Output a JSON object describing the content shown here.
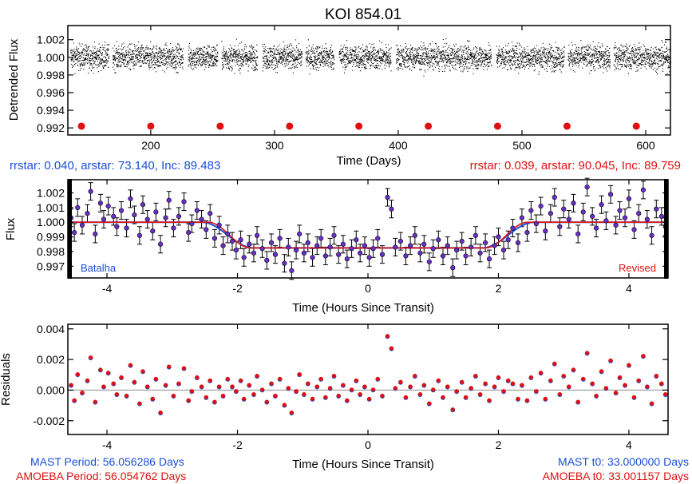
{
  "title": "KOI 854.01",
  "colors": {
    "blue": "#1a4ed8",
    "red": "#e01010",
    "purple": "#6a2fc9",
    "black": "#000000",
    "gray": "#9a9a9a"
  },
  "chart_data": [
    {
      "type": "scatter",
      "panel": "light-curve",
      "xlabel": "Time (Days)",
      "ylabel": "Detrended Flux",
      "xlim": [
        133,
        620
      ],
      "ylim": [
        0.9912,
        1.0036
      ],
      "xticks": [
        200,
        300,
        400,
        500,
        600
      ],
      "xtick_labels": [
        "200",
        "300",
        "400",
        "500",
        "600"
      ],
      "yticks": [
        0.992,
        0.994,
        0.996,
        0.998,
        1.0,
        1.002
      ],
      "ytick_labels": [
        "0.992",
        "0.994",
        "0.996",
        "0.998",
        "1.000",
        "1.002"
      ],
      "flux_center": 1.0,
      "flux_scatter_sd": 0.0007,
      "data_gaps": [
        [
          166,
          169
        ],
        [
          226,
          230
        ],
        [
          254,
          257
        ],
        [
          286,
          290
        ],
        [
          322,
          325
        ],
        [
          348,
          352
        ],
        [
          394,
          398
        ],
        [
          475,
          479
        ],
        [
          534,
          537
        ],
        [
          571,
          574
        ]
      ],
      "transit_markers": {
        "y": 0.9922,
        "x": [
          144.0,
          200.0,
          256.1,
          312.2,
          368.2,
          424.3,
          480.3,
          536.4,
          592.4
        ]
      },
      "params_left": "rrstar: 0.040, arstar: 73.140, Inc: 89.483",
      "params_right": "rrstar: 0.039, arstar: 90.045, Inc: 89.759"
    },
    {
      "type": "scatter",
      "panel": "folded-transit",
      "xlabel": "Time (Hours Since Transit)",
      "ylabel": "Flux",
      "xlim": [
        -4.6,
        4.6
      ],
      "ylim": [
        0.9962,
        1.0029
      ],
      "xticks": [
        -4,
        -2,
        0,
        2,
        4
      ],
      "xtick_labels": [
        "-4",
        "-2",
        "0",
        "2",
        "4"
      ],
      "yticks": [
        0.997,
        0.998,
        0.999,
        1.0,
        1.001,
        1.002
      ],
      "ytick_labels": [
        "0.997",
        "0.998",
        "0.999",
        "1.000",
        "1.001",
        "1.002"
      ],
      "error_bar": 0.0006,
      "model": {
        "baseline": 1.0,
        "depth_flux": 0.99825,
        "blue_contact_hours": {
          "t1": -2.55,
          "t2": -1.75,
          "t3": 1.75,
          "t4": 2.55
        },
        "red_contact_hours": {
          "t1": -2.45,
          "t2": -1.8,
          "t3": 1.8,
          "t4": 2.45
        }
      },
      "points": [
        [
          -4.55,
          1.0003
        ],
        [
          -4.5,
          0.9993
        ],
        [
          -4.45,
          1.001
        ],
        [
          -4.38,
          0.9998
        ],
        [
          -4.3,
          1.0006
        ],
        [
          -4.25,
          1.0021
        ],
        [
          -4.18,
          0.9992
        ],
        [
          -4.1,
          1.0013
        ],
        [
          -4.05,
          1.0002
        ],
        [
          -3.98,
          1.0011
        ],
        [
          -3.9,
          1.0004
        ],
        [
          -3.85,
          0.9997
        ],
        [
          -3.78,
          1.0008
        ],
        [
          -3.7,
          0.9996
        ],
        [
          -3.64,
          1.0016
        ],
        [
          -3.58,
          1.0005
        ],
        [
          -3.5,
          0.9991
        ],
        [
          -3.45,
          1.0012
        ],
        [
          -3.38,
          1.0002
        ],
        [
          -3.3,
          0.9994
        ],
        [
          -3.25,
          1.0007
        ],
        [
          -3.18,
          0.9985
        ],
        [
          -3.1,
          1.0003
        ],
        [
          -3.05,
          1.0015
        ],
        [
          -2.98,
          0.9996
        ],
        [
          -2.9,
          1.0004
        ],
        [
          -2.82,
          1.0014
        ],
        [
          -2.75,
          0.9993
        ],
        [
          -2.7,
          0.9999
        ],
        [
          -2.62,
          1.0008
        ],
        [
          -2.55,
          1.0002
        ],
        [
          -2.48,
          0.9995
        ],
        [
          -2.42,
          1.0006
        ],
        [
          -2.35,
          0.9989
        ],
        [
          -2.28,
          0.9998
        ],
        [
          -2.22,
          0.9984
        ],
        [
          -2.15,
          0.9992
        ],
        [
          -2.08,
          0.9987
        ],
        [
          -2.02,
          0.9981
        ],
        [
          -1.95,
          0.9988
        ],
        [
          -1.9,
          0.9976
        ],
        [
          -1.82,
          0.9985
        ],
        [
          -1.75,
          0.9979
        ],
        [
          -1.7,
          0.9991
        ],
        [
          -1.62,
          0.9982
        ],
        [
          -1.55,
          0.9974
        ],
        [
          -1.48,
          0.9986
        ],
        [
          -1.42,
          0.9978
        ],
        [
          -1.35,
          0.9989
        ],
        [
          -1.28,
          0.9972
        ],
        [
          -1.22,
          0.9983
        ],
        [
          -1.17,
          0.9967
        ],
        [
          -1.1,
          0.9981
        ],
        [
          -1.05,
          0.9992
        ],
        [
          -0.98,
          0.9979
        ],
        [
          -0.92,
          0.9986
        ],
        [
          -0.85,
          0.9976
        ],
        [
          -0.78,
          0.9984
        ],
        [
          -0.72,
          0.9989
        ],
        [
          -0.65,
          0.9977
        ],
        [
          -0.58,
          0.9983
        ],
        [
          -0.52,
          0.9991
        ],
        [
          -0.45,
          0.9978
        ],
        [
          -0.38,
          0.9985
        ],
        [
          -0.32,
          0.9975
        ],
        [
          -0.25,
          0.9982
        ],
        [
          -0.18,
          0.9988
        ],
        [
          -0.12,
          0.9979
        ],
        [
          -0.05,
          0.9984
        ],
        [
          0.02,
          0.9976
        ],
        [
          0.08,
          0.9982
        ],
        [
          0.15,
          0.9989
        ],
        [
          0.22,
          0.9978
        ],
        [
          0.3,
          1.0017
        ],
        [
          0.36,
          1.0009
        ],
        [
          0.42,
          0.9983
        ],
        [
          0.5,
          0.9987
        ],
        [
          0.58,
          0.9977
        ],
        [
          0.65,
          0.9984
        ],
        [
          0.72,
          0.9991
        ],
        [
          0.8,
          0.9979
        ],
        [
          0.86,
          0.9985
        ],
        [
          0.94,
          0.9973
        ],
        [
          1.0,
          0.9982
        ],
        [
          1.08,
          0.9988
        ],
        [
          1.15,
          0.9977
        ],
        [
          1.22,
          0.9984
        ],
        [
          1.3,
          0.9969
        ],
        [
          1.36,
          0.9981
        ],
        [
          1.44,
          0.9987
        ],
        [
          1.5,
          0.9977
        ],
        [
          1.58,
          0.9983
        ],
        [
          1.65,
          0.9991
        ],
        [
          1.72,
          0.9979
        ],
        [
          1.8,
          0.9986
        ],
        [
          1.86,
          0.9975
        ],
        [
          1.94,
          0.9984
        ],
        [
          2.0,
          0.999
        ],
        [
          2.08,
          0.9981
        ],
        [
          2.15,
          0.9988
        ],
        [
          2.22,
          0.9996
        ],
        [
          2.3,
          0.9986
        ],
        [
          2.36,
          1.0003
        ],
        [
          2.44,
          0.9993
        ],
        [
          2.5,
          1.0008
        ],
        [
          2.58,
          0.9999
        ],
        [
          2.65,
          1.0011
        ],
        [
          2.72,
          0.9994
        ],
        [
          2.8,
          1.0006
        ],
        [
          2.86,
          1.0017
        ],
        [
          2.94,
          0.9997
        ],
        [
          3.0,
          1.0009
        ],
        [
          3.08,
          1.0002
        ],
        [
          3.15,
          1.0013
        ],
        [
          3.22,
          0.9992
        ],
        [
          3.3,
          1.0007
        ],
        [
          3.36,
          1.0024
        ],
        [
          3.44,
          1.0004
        ],
        [
          3.5,
          0.9996
        ],
        [
          3.58,
          1.0012
        ],
        [
          3.65,
          1.0001
        ],
        [
          3.72,
          1.0019
        ],
        [
          3.8,
          0.9998
        ],
        [
          3.86,
          1.0008
        ],
        [
          3.94,
          1.0003
        ],
        [
          4.0,
          1.0016
        ],
        [
          4.08,
          0.9995
        ],
        [
          4.15,
          1.0006
        ],
        [
          4.22,
          1.0022
        ],
        [
          4.28,
          1.0002
        ],
        [
          4.35,
          0.9991
        ],
        [
          4.42,
          1.0009
        ],
        [
          4.5,
          1.0004
        ],
        [
          4.56,
          0.9997
        ]
      ],
      "label_left": "Batalha",
      "label_right": "Revised"
    },
    {
      "type": "scatter",
      "panel": "residuals",
      "xlabel": "Time (Hours Since Transit)",
      "ylabel": "Residuals",
      "xlim": [
        -4.6,
        4.6
      ],
      "ylim": [
        -0.0029,
        0.0043
      ],
      "xticks": [
        -4,
        -2,
        0,
        2,
        4
      ],
      "xtick_labels": [
        "-4",
        "-2",
        "0",
        "2",
        "4"
      ],
      "yticks": [
        -0.002,
        0.0,
        0.002,
        0.004
      ],
      "ytick_labels": [
        "-0.002",
        "0.000",
        "0.002",
        "0.004"
      ],
      "reference_line": 0.0,
      "points": [
        [
          -4.55,
          0.0003
        ],
        [
          -4.5,
          -0.0007
        ],
        [
          -4.45,
          0.001
        ],
        [
          -4.38,
          -0.0002
        ],
        [
          -4.3,
          0.0006
        ],
        [
          -4.25,
          0.0021
        ],
        [
          -4.18,
          -0.0008
        ],
        [
          -4.1,
          0.0013
        ],
        [
          -4.05,
          0.0002
        ],
        [
          -3.98,
          0.0011
        ],
        [
          -3.9,
          0.0004
        ],
        [
          -3.85,
          -0.0003
        ],
        [
          -3.78,
          0.0008
        ],
        [
          -3.7,
          -0.0004
        ],
        [
          -3.64,
          0.0016
        ],
        [
          -3.58,
          0.0005
        ],
        [
          -3.5,
          -0.0009
        ],
        [
          -3.45,
          0.0012
        ],
        [
          -3.38,
          0.0002
        ],
        [
          -3.3,
          -0.0006
        ],
        [
          -3.25,
          0.0007
        ],
        [
          -3.18,
          -0.0015
        ],
        [
          -3.1,
          0.0003
        ],
        [
          -3.05,
          0.0015
        ],
        [
          -2.98,
          -0.0004
        ],
        [
          -2.9,
          0.0004
        ],
        [
          -2.82,
          0.0014
        ],
        [
          -2.75,
          -0.0007
        ],
        [
          -2.7,
          -0.0001
        ],
        [
          -2.62,
          0.0008
        ],
        [
          -2.55,
          0.0002
        ],
        [
          -2.48,
          -0.0005
        ],
        [
          -2.42,
          0.0006
        ],
        [
          -2.35,
          -0.0008
        ],
        [
          -2.28,
          0.0002
        ],
        [
          -2.22,
          -0.0004
        ],
        [
          -2.15,
          0.0007
        ],
        [
          -2.08,
          0.0002
        ],
        [
          -2.02,
          -0.0001
        ],
        [
          -1.95,
          0.0006
        ],
        [
          -1.9,
          -0.0006
        ],
        [
          -1.82,
          0.0003
        ],
        [
          -1.75,
          -0.0003
        ],
        [
          -1.7,
          0.0009
        ],
        [
          -1.62,
          0.0
        ],
        [
          -1.55,
          -0.0008
        ],
        [
          -1.48,
          0.0004
        ],
        [
          -1.42,
          -0.0004
        ],
        [
          -1.35,
          0.0007
        ],
        [
          -1.28,
          -0.001
        ],
        [
          -1.22,
          0.0001
        ],
        [
          -1.17,
          -0.0015
        ],
        [
          -1.1,
          -0.0001
        ],
        [
          -1.05,
          0.001
        ],
        [
          -0.98,
          -0.0003
        ],
        [
          -0.92,
          0.0004
        ],
        [
          -0.85,
          -0.0006
        ],
        [
          -0.78,
          0.0002
        ],
        [
          -0.72,
          0.0007
        ],
        [
          -0.65,
          -0.0005
        ],
        [
          -0.58,
          0.0001
        ],
        [
          -0.52,
          0.0009
        ],
        [
          -0.45,
          -0.0004
        ],
        [
          -0.38,
          0.0003
        ],
        [
          -0.32,
          -0.0007
        ],
        [
          -0.25,
          0.0
        ],
        [
          -0.18,
          0.0006
        ],
        [
          -0.12,
          -0.0003
        ],
        [
          -0.05,
          0.0002
        ],
        [
          0.02,
          -0.0006
        ],
        [
          0.08,
          0.0
        ],
        [
          0.15,
          0.0007
        ],
        [
          0.22,
          -0.0004
        ],
        [
          0.3,
          0.0035
        ],
        [
          0.36,
          0.0027
        ],
        [
          0.42,
          0.0001
        ],
        [
          0.5,
          0.0005
        ],
        [
          0.58,
          -0.0005
        ],
        [
          0.65,
          0.0002
        ],
        [
          0.72,
          0.0009
        ],
        [
          0.8,
          -0.0003
        ],
        [
          0.86,
          0.0003
        ],
        [
          0.94,
          -0.0009
        ],
        [
          1.0,
          0.0
        ],
        [
          1.08,
          0.0006
        ],
        [
          1.15,
          -0.0005
        ],
        [
          1.22,
          0.0002
        ],
        [
          1.3,
          -0.0013
        ],
        [
          1.36,
          -0.0001
        ],
        [
          1.44,
          0.0005
        ],
        [
          1.5,
          -0.0005
        ],
        [
          1.58,
          0.0001
        ],
        [
          1.65,
          0.0009
        ],
        [
          1.72,
          -0.0003
        ],
        [
          1.8,
          0.0004
        ],
        [
          1.86,
          -0.0007
        ],
        [
          1.94,
          0.0002
        ],
        [
          2.0,
          0.0008
        ],
        [
          2.08,
          -0.0001
        ],
        [
          2.15,
          0.0006
        ],
        [
          2.22,
          0.0004
        ],
        [
          2.3,
          -0.0006
        ],
        [
          2.36,
          0.0003
        ],
        [
          2.44,
          -0.0007
        ],
        [
          2.5,
          0.0008
        ],
        [
          2.58,
          -0.0001
        ],
        [
          2.65,
          0.0011
        ],
        [
          2.72,
          -0.0006
        ],
        [
          2.8,
          0.0006
        ],
        [
          2.86,
          0.0017
        ],
        [
          2.94,
          -0.0003
        ],
        [
          3.0,
          0.0009
        ],
        [
          3.08,
          0.0002
        ],
        [
          3.15,
          0.0013
        ],
        [
          3.22,
          -0.0008
        ],
        [
          3.3,
          0.0007
        ],
        [
          3.36,
          0.0024
        ],
        [
          3.44,
          0.0004
        ],
        [
          3.5,
          -0.0004
        ],
        [
          3.58,
          0.0012
        ],
        [
          3.65,
          0.0001
        ],
        [
          3.72,
          0.0019
        ],
        [
          3.8,
          -0.0002
        ],
        [
          3.86,
          0.0008
        ],
        [
          3.94,
          0.0003
        ],
        [
          4.0,
          0.0016
        ],
        [
          4.08,
          -0.0005
        ],
        [
          4.15,
          0.0006
        ],
        [
          4.22,
          0.0022
        ],
        [
          4.28,
          0.0002
        ],
        [
          4.35,
          -0.0009
        ],
        [
          4.42,
          0.0009
        ],
        [
          4.5,
          0.0004
        ],
        [
          4.56,
          -0.0003
        ]
      ]
    }
  ],
  "footer": {
    "mast_period": "MAST Period: 56.056286 Days",
    "amoeba_period": "AMOEBA Period: 56.054762 Days",
    "mast_t0": "MAST t0: 33.000000 Days",
    "amoeba_t0": "AMOEBA t0: 33.001157 Days"
  }
}
